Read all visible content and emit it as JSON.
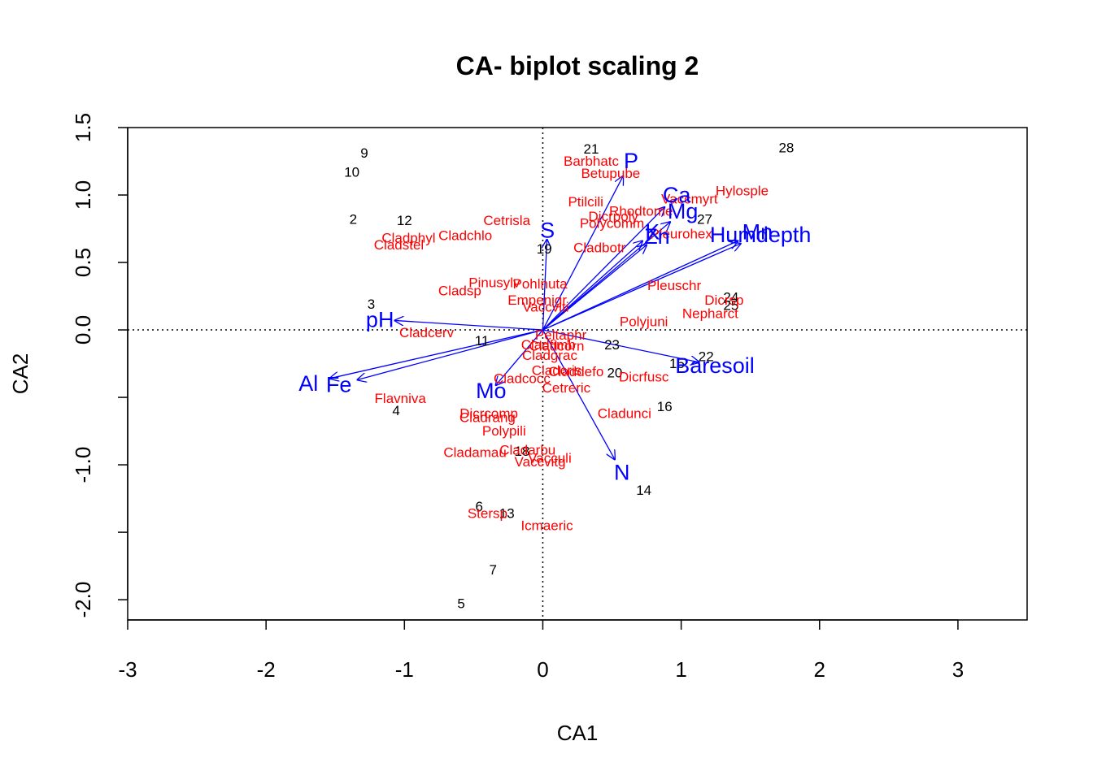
{
  "chart_data": {
    "type": "scatter",
    "title": "CA- biplot scaling 2",
    "xlabel": "CA1",
    "ylabel": "CA2",
    "xlim": [
      -3.0,
      3.5
    ],
    "ylim": [
      -2.15,
      1.5
    ],
    "x_ticks": [
      -3,
      -2,
      -1,
      0,
      1,
      2,
      3
    ],
    "x_tick_labels": [
      "-3",
      "-2",
      "-1",
      "0",
      "1",
      "2",
      "3"
    ],
    "y_ticks": [
      -2.0,
      -1.5,
      -1.0,
      -0.5,
      0.0,
      0.5,
      1.0,
      1.5
    ],
    "y_tick_labels": [
      "-2.0",
      "",
      "-1.0",
      "",
      "0.0",
      "0.5",
      "1.0",
      "1.5"
    ],
    "reference_lines": {
      "x": 0,
      "y": 0,
      "style": "dotted"
    },
    "colors": {
      "sites": "#000000",
      "species": "#ff0000",
      "env": "#0000ff"
    },
    "sites": [
      {
        "label": "9",
        "x": -1.29,
        "y": 1.31
      },
      {
        "label": "10",
        "x": -1.38,
        "y": 1.17
      },
      {
        "label": "2",
        "x": -1.37,
        "y": 0.82
      },
      {
        "label": "12",
        "x": -1.0,
        "y": 0.81
      },
      {
        "label": "3",
        "x": -1.24,
        "y": 0.19
      },
      {
        "label": "11",
        "x": -0.44,
        "y": -0.08
      },
      {
        "label": "4",
        "x": -1.06,
        "y": -0.6
      },
      {
        "label": "6",
        "x": -0.46,
        "y": -1.31
      },
      {
        "label": "13",
        "x": -0.26,
        "y": -1.36
      },
      {
        "label": "18",
        "x": -0.15,
        "y": -0.9
      },
      {
        "label": "7",
        "x": -0.36,
        "y": -1.78
      },
      {
        "label": "5",
        "x": -0.59,
        "y": -2.03
      },
      {
        "label": "19",
        "x": 0.01,
        "y": 0.6
      },
      {
        "label": "21",
        "x": 0.35,
        "y": 1.34
      },
      {
        "label": "28",
        "x": 1.76,
        "y": 1.35
      },
      {
        "label": "27",
        "x": 1.17,
        "y": 0.82
      },
      {
        "label": "24",
        "x": 1.36,
        "y": 0.24
      },
      {
        "label": "25",
        "x": 1.36,
        "y": 0.18
      },
      {
        "label": "23",
        "x": 0.5,
        "y": -0.11
      },
      {
        "label": "22",
        "x": 1.18,
        "y": -0.2
      },
      {
        "label": "15",
        "x": 0.97,
        "y": -0.25
      },
      {
        "label": "20",
        "x": 0.52,
        "y": -0.32
      },
      {
        "label": "16",
        "x": 0.88,
        "y": -0.57
      },
      {
        "label": "14",
        "x": 0.73,
        "y": -1.19
      }
    ],
    "species": [
      {
        "label": "Barbhatc",
        "x": 0.35,
        "y": 1.25
      },
      {
        "label": "Betupube",
        "x": 0.49,
        "y": 1.16
      },
      {
        "label": "Hylosple",
        "x": 1.44,
        "y": 1.03
      },
      {
        "label": "Vaccmyrt",
        "x": 1.06,
        "y": 0.97
      },
      {
        "label": "Ptilcili",
        "x": 0.31,
        "y": 0.95
      },
      {
        "label": "Rhodtome",
        "x": 0.71,
        "y": 0.88
      },
      {
        "label": "Dicrpoly",
        "x": 0.51,
        "y": 0.84
      },
      {
        "label": "Polycomm",
        "x": 0.5,
        "y": 0.79
      },
      {
        "label": "Cetrisla",
        "x": -0.26,
        "y": 0.81
      },
      {
        "label": "Pleurohex",
        "x": 1.0,
        "y": 0.71
      },
      {
        "label": "Cladphyl",
        "x": -0.97,
        "y": 0.68
      },
      {
        "label": "Cladchlo",
        "x": -0.56,
        "y": 0.7
      },
      {
        "label": "Cladstel",
        "x": -1.04,
        "y": 0.63
      },
      {
        "label": "Cladbotr",
        "x": 0.41,
        "y": 0.61
      },
      {
        "label": "Pinusylv",
        "x": -0.35,
        "y": 0.35
      },
      {
        "label": "Pohlnuta",
        "x": -0.02,
        "y": 0.34
      },
      {
        "label": "Cladsp",
        "x": -0.6,
        "y": 0.29
      },
      {
        "label": "Pleuschr",
        "x": 0.95,
        "y": 0.33
      },
      {
        "label": "Empenigr",
        "x": -0.04,
        "y": 0.22
      },
      {
        "label": "Vaccviti",
        "x": 0.02,
        "y": 0.17
      },
      {
        "label": "Dicrsp",
        "x": 1.31,
        "y": 0.22
      },
      {
        "label": "Nepharct",
        "x": 1.21,
        "y": 0.12
      },
      {
        "label": "Polyjuni",
        "x": 0.73,
        "y": 0.06
      },
      {
        "label": "Cladcerv",
        "x": -0.84,
        "y": -0.02
      },
      {
        "label": "Peltaphr",
        "x": 0.13,
        "y": -0.04
      },
      {
        "label": "Cladfimb",
        "x": 0.04,
        "y": -0.11
      },
      {
        "label": "Cladcorn",
        "x": 0.1,
        "y": -0.12
      },
      {
        "label": "Cladgrac",
        "x": 0.05,
        "y": -0.19
      },
      {
        "label": "Cladcris",
        "x": 0.1,
        "y": -0.3
      },
      {
        "label": "Claddefo",
        "x": 0.24,
        "y": -0.31
      },
      {
        "label": "Cladcocc",
        "x": -0.15,
        "y": -0.36
      },
      {
        "label": "Cetreric",
        "x": 0.17,
        "y": -0.43
      },
      {
        "label": "Dicrfusc",
        "x": 0.73,
        "y": -0.35
      },
      {
        "label": "Flavniva",
        "x": -1.03,
        "y": -0.51
      },
      {
        "label": "Cladunci",
        "x": 0.59,
        "y": -0.62
      },
      {
        "label": "Dicrcomp",
        "x": -0.39,
        "y": -0.62
      },
      {
        "label": "Cladrang",
        "x": -0.4,
        "y": -0.65
      },
      {
        "label": "Polypili",
        "x": -0.28,
        "y": -0.75
      },
      {
        "label": "Cladamau",
        "x": -0.49,
        "y": -0.91
      },
      {
        "label": "Cladarbu",
        "x": -0.11,
        "y": -0.89
      },
      {
        "label": "Vacculi",
        "x": 0.05,
        "y": -0.95
      },
      {
        "label": "Vaccvitg",
        "x": -0.02,
        "y": -0.98
      },
      {
        "label": "Stersp",
        "x": -0.4,
        "y": -1.36
      },
      {
        "label": "Icmaeric",
        "x": 0.03,
        "y": -1.45
      }
    ],
    "env": [
      {
        "label": "P",
        "x": 0.58,
        "y": 1.14
      },
      {
        "label": "Ca",
        "x": 0.88,
        "y": 0.91
      },
      {
        "label": "Mg",
        "x": 0.92,
        "y": 0.8
      },
      {
        "label": "K",
        "x": 0.72,
        "y": 0.66
      },
      {
        "label": "Zn",
        "x": 0.75,
        "y": 0.63
      },
      {
        "label": "S",
        "x": 0.03,
        "y": 0.67
      },
      {
        "label": "Humdepth",
        "x": 1.43,
        "y": 0.64
      },
      {
        "label": "Mn",
        "x": 1.41,
        "y": 0.66
      },
      {
        "label": "pH",
        "x": -1.07,
        "y": 0.07
      },
      {
        "label": "Al",
        "x": -1.54,
        "y": -0.36
      },
      {
        "label": "Fe",
        "x": -1.34,
        "y": -0.37
      },
      {
        "label": "Mo",
        "x": -0.34,
        "y": -0.41
      },
      {
        "label": "N",
        "x": 0.52,
        "y": -0.96
      },
      {
        "label": "Baresoil",
        "x": 1.13,
        "y": -0.24
      }
    ]
  }
}
